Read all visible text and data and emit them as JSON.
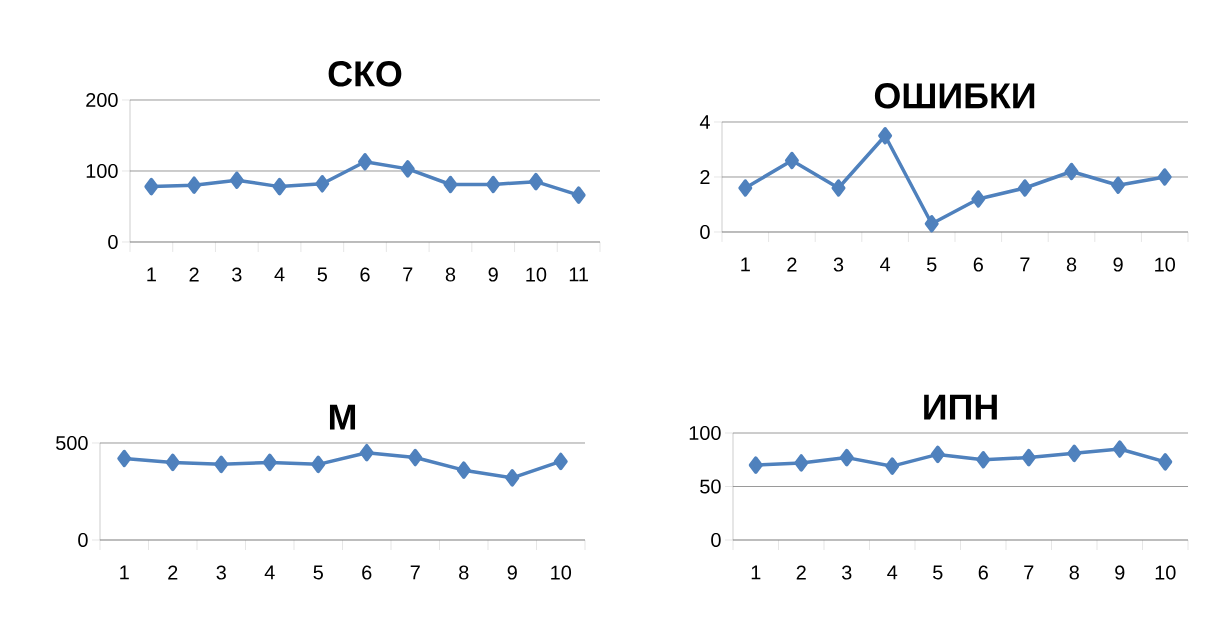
{
  "chart_data": [
    {
      "type": "line",
      "title": "СКО",
      "categories": [
        "1",
        "2",
        "3",
        "4",
        "5",
        "6",
        "7",
        "8",
        "9",
        "10",
        "11"
      ],
      "values": [
        78,
        80,
        87,
        78,
        82,
        113,
        103,
        81,
        81,
        85,
        66
      ],
      "color": "#4f81bd",
      "ylim": [
        0,
        200
      ],
      "yticks": [
        0,
        100,
        200
      ],
      "grid": "y",
      "marker": "diamond"
    },
    {
      "type": "line",
      "title": "ОШИБКИ",
      "categories": [
        "1",
        "2",
        "3",
        "4",
        "5",
        "6",
        "7",
        "8",
        "9",
        "10"
      ],
      "values": [
        1.6,
        2.6,
        1.6,
        3.5,
        0.3,
        1.2,
        1.6,
        2.2,
        1.7,
        2.0
      ],
      "color": "#4f81bd",
      "ylim": [
        0,
        4
      ],
      "yticks": [
        0,
        2,
        4
      ],
      "grid": "y",
      "marker": "diamond"
    },
    {
      "type": "line",
      "title": "М",
      "categories": [
        "1",
        "2",
        "3",
        "4",
        "5",
        "6",
        "7",
        "8",
        "9",
        "10"
      ],
      "values": [
        420,
        400,
        390,
        400,
        390,
        450,
        425,
        360,
        320,
        405
      ],
      "color": "#4f81bd",
      "ylim": [
        0,
        500
      ],
      "yticks": [
        0,
        500
      ],
      "grid": "y",
      "marker": "diamond"
    },
    {
      "type": "line",
      "title": "ИПН",
      "categories": [
        "1",
        "2",
        "3",
        "4",
        "5",
        "6",
        "7",
        "8",
        "9",
        "10"
      ],
      "values": [
        70,
        72,
        77,
        69,
        80,
        75,
        77,
        81,
        85,
        73
      ],
      "color": "#4f81bd",
      "ylim": [
        0,
        100
      ],
      "yticks": [
        0,
        50,
        100
      ],
      "grid": "y",
      "marker": "diamond"
    }
  ]
}
